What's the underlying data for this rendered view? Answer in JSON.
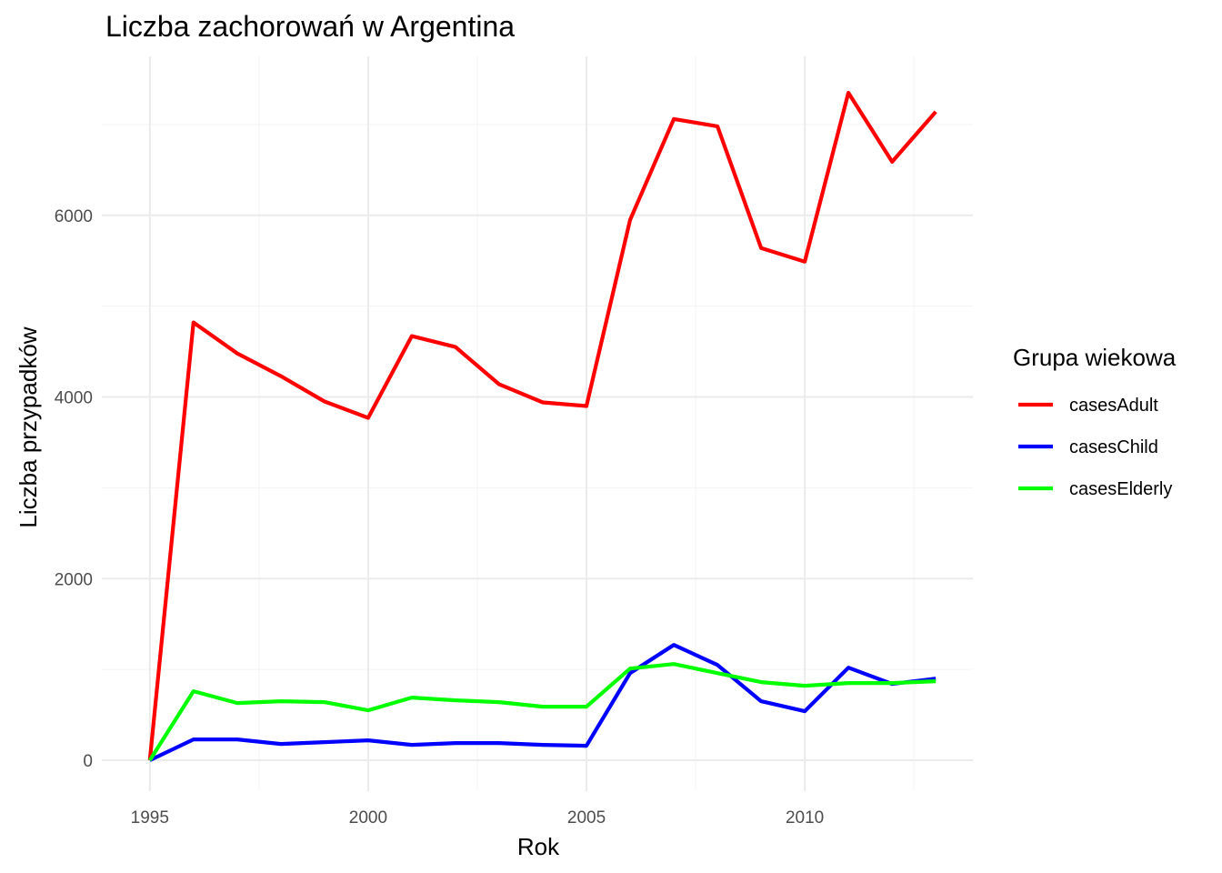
{
  "chart_data": {
    "type": "line",
    "title": "Liczba zachorowań w Argentina",
    "xlabel": "Rok",
    "ylabel": "Liczba przypadków",
    "x": [
      1995,
      1996,
      1997,
      1998,
      1999,
      2000,
      2001,
      2002,
      2003,
      2004,
      2005,
      2006,
      2007,
      2008,
      2009,
      2010,
      2011,
      2012,
      2013
    ],
    "xlim": [
      1993.9,
      2013.85
    ],
    "ylim": [
      -340,
      7750
    ],
    "x_ticks": [
      1995,
      2000,
      2005,
      2010
    ],
    "y_ticks": [
      0,
      2000,
      4000,
      6000
    ],
    "x_tick_labels": [
      "1995",
      "2000",
      "2005",
      "2010"
    ],
    "y_tick_labels": [
      "0",
      "2000",
      "4000",
      "6000"
    ],
    "grid": true,
    "legend_position": "right",
    "legend_title": "Grupa wiekowa",
    "series": [
      {
        "name": "casesAdult",
        "color": "#ff0000",
        "values": [
          0,
          4820,
          4480,
          4230,
          3950,
          3770,
          4670,
          4550,
          4140,
          3940,
          3900,
          5950,
          7060,
          6980,
          5640,
          5490,
          7350,
          6590,
          7140
        ]
      },
      {
        "name": "casesChild",
        "color": "#0000ff",
        "values": [
          0,
          230,
          230,
          180,
          200,
          220,
          170,
          190,
          190,
          170,
          160,
          960,
          1270,
          1050,
          650,
          540,
          1020,
          840,
          900
        ]
      },
      {
        "name": "casesElderly",
        "color": "#00ff00",
        "values": [
          0,
          760,
          630,
          650,
          640,
          550,
          690,
          660,
          640,
          590,
          590,
          1010,
          1060,
          960,
          860,
          820,
          850,
          850,
          870
        ]
      }
    ]
  }
}
